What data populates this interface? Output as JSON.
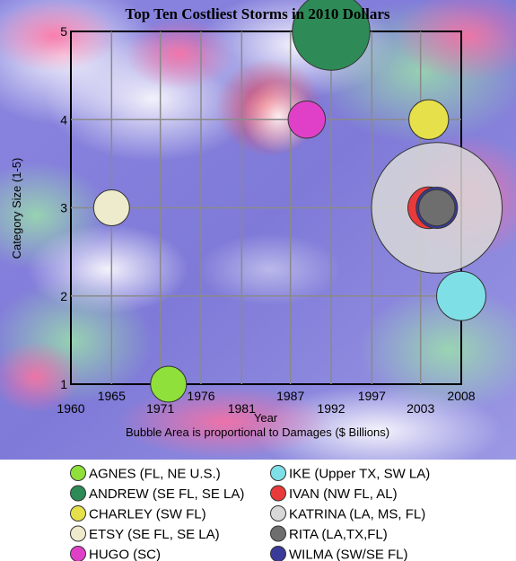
{
  "chart_data": {
    "type": "bubble",
    "title": "Top Ten Costliest Storms in 2010 Dollars",
    "xlabel": "Year",
    "ylabel": "Category Size (1-5)",
    "note": "Bubble Area is proportional to Damages ($ Billions)",
    "xlim": [
      1960,
      2008
    ],
    "ylim": [
      1,
      5
    ],
    "x_ticks_lower": [
      "1960",
      "1971",
      "1981",
      "1992",
      "2003"
    ],
    "x_ticks_upper": [
      "1965",
      "1976",
      "1987",
      "1997",
      "2008"
    ],
    "x_tick_values_lower": [
      1960,
      1971,
      1981,
      1992,
      2003
    ],
    "x_tick_values_upper": [
      1965,
      1976,
      1987,
      1997,
      2008
    ],
    "y_ticks": [
      "1",
      "2",
      "3",
      "4",
      "5"
    ],
    "y_tick_values": [
      1,
      2,
      3,
      4,
      5
    ],
    "grid": true,
    "legend_position": "bottom",
    "background": "satellite weather image",
    "series": [
      {
        "name": "AGNES (FL, NE U.S.)",
        "x": 1972,
        "y": 1,
        "relative_size": 1.0,
        "color": "#8fe03a"
      },
      {
        "name": "ANDREW (SE FL, SE LA)",
        "x": 1992,
        "y": 5,
        "relative_size": 4.67,
        "color": "#2e8b57"
      },
      {
        "name": "CHARLEY (SW FL)",
        "x": 2004,
        "y": 4,
        "relative_size": 1.22,
        "color": "#e6e04a"
      },
      {
        "name": "ETSY (SE FL, SE LA)",
        "x": 1965,
        "y": 3,
        "relative_size": 1.0,
        "color": "#eeeacc"
      },
      {
        "name": "HUGO (SC)",
        "x": 1989,
        "y": 4,
        "relative_size": 1.08,
        "color": "#e040c8"
      },
      {
        "name": "IKE (Upper TX, SW LA)",
        "x": 2008,
        "y": 2,
        "relative_size": 1.88,
        "color": "#7ee0e6"
      },
      {
        "name": "IVAN (NW FL, AL)",
        "x": 2004,
        "y": 3,
        "relative_size": 1.35,
        "color": "#e83a3a"
      },
      {
        "name": "KATRINA (LA, MS, FL)",
        "x": 2005,
        "y": 3,
        "relative_size": 13.25,
        "color": "#d8d8d8"
      },
      {
        "name": "RITA (LA,TX,FL)",
        "x": 2005,
        "y": 3,
        "relative_size": 1.02,
        "color": "#6e6e6e"
      },
      {
        "name": "WILMA (SW/SE FL)",
        "x": 2005,
        "y": 3,
        "relative_size": 1.32,
        "color": "#3a3a9a"
      }
    ],
    "draw_order": [
      "KATRINA (LA, MS, FL)",
      "ANDREW (SE FL, SE LA)",
      "IKE (Upper TX, SW LA)",
      "CHARLEY (SW FL)",
      "HUGO (SC)",
      "ETSY (SE FL, SE LA)",
      "AGNES (FL, NE U.S.)",
      "IVAN (NW FL, AL)",
      "WILMA (SW/SE FL)",
      "RITA (LA,TX,FL)"
    ]
  }
}
